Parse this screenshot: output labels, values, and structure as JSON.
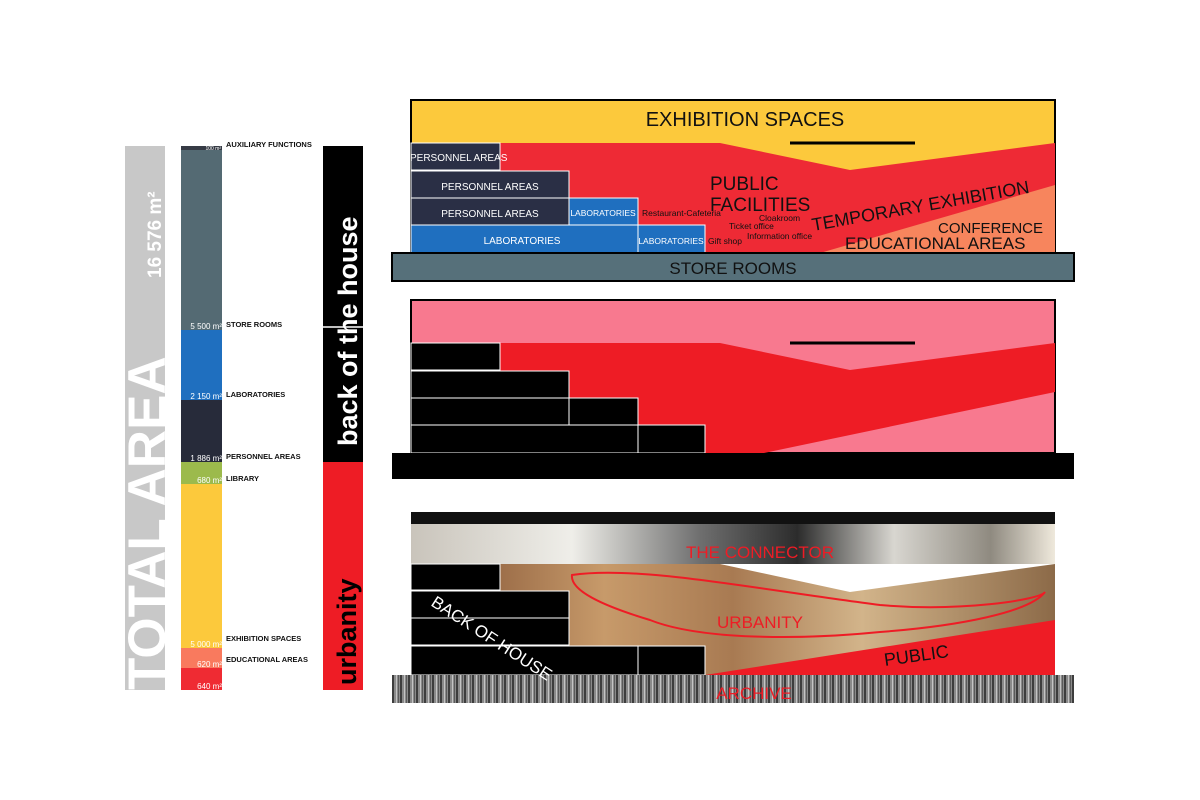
{
  "total_area": {
    "label": "TOTAL AREA",
    "value": "16 576 m²"
  },
  "area_bar": [
    {
      "key": "auxiliary",
      "name": "AUXILIARY FUNCTIONS",
      "area": "100 m²",
      "color": "#363b45"
    },
    {
      "key": "store",
      "name": "STORE ROOMS",
      "area": "5 500 m²",
      "color": "#546a73"
    },
    {
      "key": "labs",
      "name": "LABORATORIES",
      "area": "2 150 m²",
      "color": "#1f6fbf"
    },
    {
      "key": "personnel",
      "name": "PERSONNEL AREAS",
      "area": "1 886 m²",
      "color": "#272b3a"
    },
    {
      "key": "library",
      "name": "LIBRARY",
      "area": "680 m²",
      "color": "#9cba4c"
    },
    {
      "key": "exhibition",
      "name": "EXHIBITION SPACES",
      "area": "5 000 m²",
      "color": "#fcc93c"
    },
    {
      "key": "educational",
      "name": "EDUCATIONAL AREAS",
      "area": "620 m²",
      "color": "#f97a5e"
    },
    {
      "key": "public",
      "name": "",
      "area": "640 m²",
      "color": "#ef2b33"
    }
  ],
  "zones": {
    "back": "back of the house",
    "front": "urbanity"
  },
  "section1": {
    "exhibition": "EXHIBITION SPACES",
    "public_1": "PUBLIC",
    "public_2": "FACILITIES",
    "temporary": "TEMPORARY EXHIBITION",
    "conference": "CONFERENCE",
    "educational": "EDUCATIONAL AREAS",
    "personnel_top": "PERSONNEL AREAS",
    "personnel_mid": "PERSONNEL AREAS",
    "personnel_low": "PERSONNEL AREAS",
    "labs_small": "LABORATORIES",
    "labs_big": "LABORATORIES",
    "labs_right": "LABORATORIES",
    "restaurant": "Restaurant-Cafeteria",
    "cloakroom": "Cloakroom",
    "ticket": "Ticket office",
    "information": "Information office",
    "gift": "Gift shop",
    "store": "STORE ROOMS"
  },
  "section3": {
    "connector": "THE CONNECTOR",
    "back_house": "BACK OF HOUSE",
    "urbanity": "URBANITY",
    "public": "PUBLIC",
    "archive": "ARCHIVE"
  },
  "colors": {
    "exhibition": "#fcc93c",
    "public": "#ee2a35",
    "orange": "#f7855d",
    "personnel": "#2a2f45",
    "labs": "#1f6fbf",
    "store": "#56707a",
    "pink": "#f8798f",
    "black": "#000000",
    "grey_text": "#c8c8c8"
  }
}
